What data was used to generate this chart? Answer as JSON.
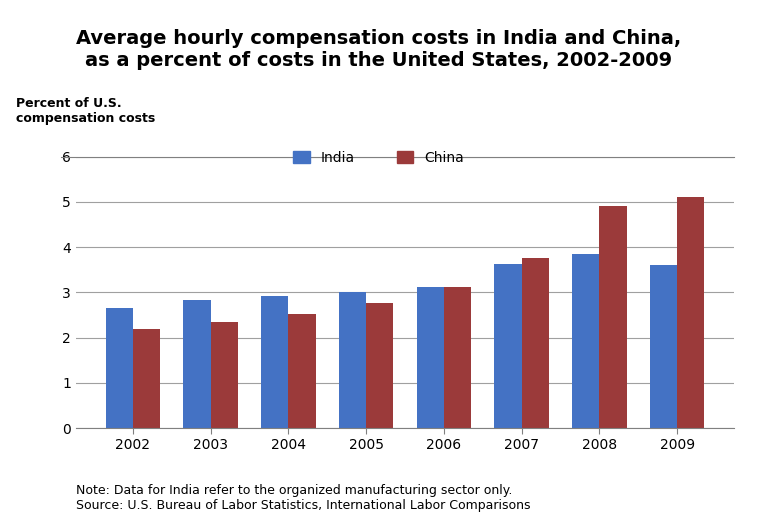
{
  "title": "Average hourly compensation costs in India and China,\nas a percent of costs in the United States, 2002-2009",
  "ylabel": "Percent of U.S.\ncompensation costs",
  "years": [
    2002,
    2003,
    2004,
    2005,
    2006,
    2007,
    2008,
    2009
  ],
  "india": [
    2.65,
    2.83,
    2.92,
    3.01,
    3.12,
    3.63,
    3.85,
    3.6
  ],
  "china": [
    2.19,
    2.35,
    2.53,
    2.76,
    3.12,
    3.76,
    4.9,
    5.1
  ],
  "india_color": "#4472C4",
  "china_color": "#9B3A3A",
  "ylim": [
    0,
    6
  ],
  "yticks": [
    0,
    1,
    2,
    3,
    4,
    5,
    6
  ],
  "bar_width": 0.35,
  "note": "Note: Data for India refer to the organized manufacturing sector only.\nSource: U.S. Bureau of Labor Statistics, International Labor Comparisons",
  "legend_india": "India",
  "legend_china": "China",
  "background_color": "#ffffff",
  "title_fontsize": 14,
  "axis_label_fontsize": 9,
  "tick_fontsize": 10,
  "note_fontsize": 9,
  "grid_color": "#a0a0a0"
}
